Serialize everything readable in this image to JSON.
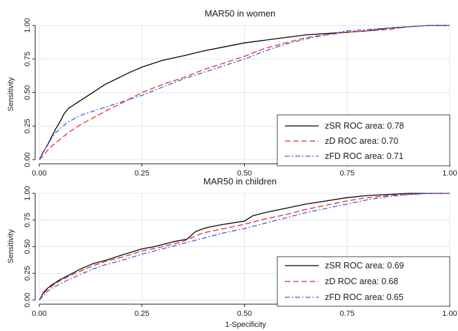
{
  "chart_data": [
    {
      "type": "line",
      "title": "MAR50 in women",
      "xlabel": "",
      "ylabel": "Sensitivity",
      "xlim": [
        0,
        1
      ],
      "ylim": [
        0,
        1
      ],
      "xticks": [
        "0.00",
        "0.25",
        "0.50",
        "0.75",
        "1.00"
      ],
      "yticks": [
        "0.00",
        "0.25",
        "0.50",
        "0.75",
        "1.00"
      ],
      "grid": true,
      "legend_position": "bottom-right",
      "series": [
        {
          "name": "zSR ROC area: 0.78",
          "color": "#000000",
          "dash": "solid",
          "x": [
            0,
            0.01,
            0.02,
            0.03,
            0.04,
            0.05,
            0.06,
            0.07,
            0.08,
            0.09,
            0.1,
            0.12,
            0.14,
            0.16,
            0.18,
            0.2,
            0.22,
            0.25,
            0.28,
            0.3,
            0.33,
            0.36,
            0.4,
            0.45,
            0.5,
            0.55,
            0.6,
            0.65,
            0.7,
            0.75,
            0.8,
            0.85,
            0.9,
            0.95,
            1.0
          ],
          "y": [
            0,
            0.06,
            0.11,
            0.17,
            0.23,
            0.28,
            0.34,
            0.38,
            0.4,
            0.42,
            0.44,
            0.48,
            0.52,
            0.56,
            0.59,
            0.62,
            0.65,
            0.69,
            0.72,
            0.74,
            0.76,
            0.78,
            0.81,
            0.84,
            0.87,
            0.89,
            0.91,
            0.93,
            0.94,
            0.95,
            0.96,
            0.98,
            0.99,
            1.0,
            1.0
          ]
        },
        {
          "name": "zD ROC area: 0.70",
          "color": "#e8282b",
          "dash": "dashed",
          "x": [
            0,
            0.01,
            0.02,
            0.03,
            0.05,
            0.07,
            0.1,
            0.13,
            0.16,
            0.2,
            0.25,
            0.3,
            0.35,
            0.4,
            0.45,
            0.5,
            0.55,
            0.6,
            0.65,
            0.7,
            0.75,
            0.8,
            0.85,
            0.9,
            0.95,
            1.0
          ],
          "y": [
            0,
            0.03,
            0.07,
            0.1,
            0.15,
            0.2,
            0.26,
            0.31,
            0.36,
            0.42,
            0.5,
            0.56,
            0.61,
            0.67,
            0.72,
            0.77,
            0.83,
            0.87,
            0.91,
            0.93,
            0.95,
            0.96,
            0.97,
            0.99,
            1.0,
            1.0
          ]
        },
        {
          "name": "zFD ROC area: 0.71",
          "color": "#3b5bdb",
          "dash": "dashdot",
          "x": [
            0,
            0.01,
            0.02,
            0.03,
            0.04,
            0.05,
            0.07,
            0.1,
            0.13,
            0.16,
            0.2,
            0.25,
            0.3,
            0.35,
            0.4,
            0.45,
            0.5,
            0.55,
            0.6,
            0.65,
            0.7,
            0.75,
            0.8,
            0.85,
            0.9,
            0.95,
            1.0
          ],
          "y": [
            0,
            0.06,
            0.11,
            0.16,
            0.2,
            0.23,
            0.28,
            0.33,
            0.36,
            0.39,
            0.43,
            0.48,
            0.54,
            0.6,
            0.65,
            0.7,
            0.75,
            0.81,
            0.86,
            0.9,
            0.93,
            0.96,
            0.97,
            0.98,
            0.99,
            1.0,
            1.0
          ]
        }
      ]
    },
    {
      "type": "line",
      "title": "MAR50 in children",
      "xlabel": "1-Specificity",
      "ylabel": "Sensitivity",
      "xlim": [
        0,
        1
      ],
      "ylim": [
        0,
        1
      ],
      "xticks": [
        "0.00",
        "0.25",
        "0.50",
        "0.75",
        "1.00"
      ],
      "yticks": [
        "0.00",
        "0.25",
        "0.50",
        "0.75",
        "1.00"
      ],
      "grid": true,
      "legend_position": "bottom-right",
      "series": [
        {
          "name": "zSR ROC area: 0.69",
          "color": "#000000",
          "dash": "solid",
          "x": [
            0,
            0.01,
            0.02,
            0.03,
            0.05,
            0.07,
            0.1,
            0.13,
            0.16,
            0.2,
            0.25,
            0.28,
            0.3,
            0.33,
            0.36,
            0.38,
            0.4,
            0.42,
            0.45,
            0.5,
            0.52,
            0.55,
            0.6,
            0.65,
            0.7,
            0.75,
            0.8,
            0.85,
            0.9,
            0.95,
            1.0
          ],
          "y": [
            0,
            0.07,
            0.11,
            0.14,
            0.19,
            0.23,
            0.29,
            0.34,
            0.37,
            0.42,
            0.48,
            0.5,
            0.52,
            0.55,
            0.57,
            0.64,
            0.67,
            0.69,
            0.71,
            0.74,
            0.79,
            0.82,
            0.86,
            0.9,
            0.93,
            0.96,
            0.98,
            0.99,
            1.0,
            1.0,
            1.0
          ]
        },
        {
          "name": "zD ROC area: 0.68",
          "color": "#e8282b",
          "dash": "dashed",
          "x": [
            0,
            0.01,
            0.02,
            0.03,
            0.05,
            0.07,
            0.1,
            0.13,
            0.16,
            0.2,
            0.25,
            0.3,
            0.35,
            0.38,
            0.4,
            0.45,
            0.5,
            0.55,
            0.6,
            0.65,
            0.7,
            0.75,
            0.8,
            0.85,
            0.9,
            0.95,
            1.0
          ],
          "y": [
            0,
            0.06,
            0.1,
            0.13,
            0.18,
            0.22,
            0.27,
            0.32,
            0.36,
            0.4,
            0.46,
            0.5,
            0.55,
            0.6,
            0.63,
            0.67,
            0.71,
            0.76,
            0.8,
            0.85,
            0.89,
            0.93,
            0.96,
            0.98,
            0.99,
            1.0,
            1.0
          ]
        },
        {
          "name": "zFD ROC area: 0.65",
          "color": "#3b5bdb",
          "dash": "dashdot",
          "x": [
            0,
            0.01,
            0.02,
            0.03,
            0.05,
            0.07,
            0.1,
            0.13,
            0.16,
            0.2,
            0.25,
            0.3,
            0.35,
            0.4,
            0.45,
            0.5,
            0.55,
            0.6,
            0.65,
            0.7,
            0.75,
            0.8,
            0.85,
            0.9,
            0.95,
            1.0
          ],
          "y": [
            0,
            0.04,
            0.08,
            0.11,
            0.15,
            0.19,
            0.24,
            0.29,
            0.33,
            0.37,
            0.43,
            0.48,
            0.53,
            0.58,
            0.63,
            0.67,
            0.72,
            0.77,
            0.82,
            0.86,
            0.9,
            0.94,
            0.97,
            0.99,
            1.0,
            1.0
          ]
        }
      ]
    }
  ]
}
